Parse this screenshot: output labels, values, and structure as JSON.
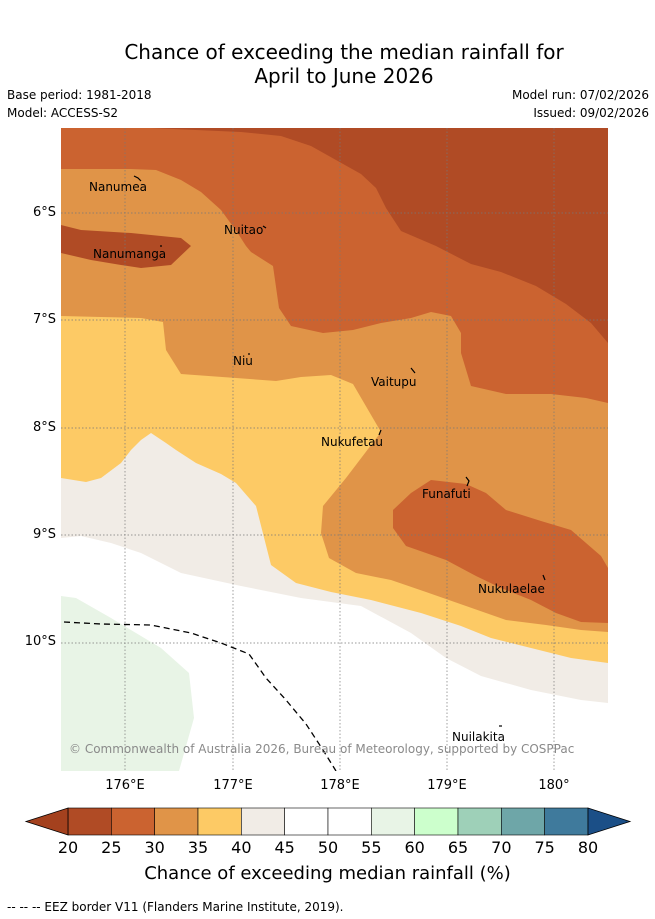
{
  "title_line1": "Chance of exceeding the median rainfall for",
  "title_line2": "April to June 2026",
  "base_period": "Base period: 1981-2018",
  "model": "Model: ACCESS-S2",
  "model_run": "Model run: 07/02/2026",
  "issued": "Issued: 09/02/2026",
  "lat_labels": [
    "6°S",
    "7°S",
    "8°S",
    "9°S",
    "10°S"
  ],
  "lon_labels": [
    "176°E",
    "177°E",
    "178°E",
    "179°E",
    "180°"
  ],
  "places": [
    {
      "name": "Nanumea"
    },
    {
      "name": "Nuitao"
    },
    {
      "name": "Nanumanga"
    },
    {
      "name": "Niu"
    },
    {
      "name": "Vaitupu"
    },
    {
      "name": "Nukufetau"
    },
    {
      "name": "Funafuti"
    },
    {
      "name": "Nukulaelae"
    },
    {
      "name": "Nuilakita"
    }
  ],
  "copyright": "© Commonwealth of Australia 2026, Bureau of Meteorology, supported by COSPPac",
  "colorbar": {
    "title": "Chance of exceeding median rainfall (%)",
    "ticks": [
      "20",
      "25",
      "30",
      "35",
      "40",
      "45",
      "50",
      "55",
      "60",
      "65",
      "70",
      "75",
      "80"
    ],
    "under_color": "#a4411e",
    "over_color": "#1b4f87",
    "colors": [
      "#b04b25",
      "#cb6330",
      "#e09448",
      "#fdca65",
      "#f1ece6",
      "#ffffff",
      "#ffffff",
      "#e8f4e6",
      "#ccffcc",
      "#9ed0b8",
      "#6ea6a8",
      "#3f7a9c"
    ]
  },
  "footnote": "-- -- -- EEZ border V11 (Flanders Marine Institute, 2019)."
}
